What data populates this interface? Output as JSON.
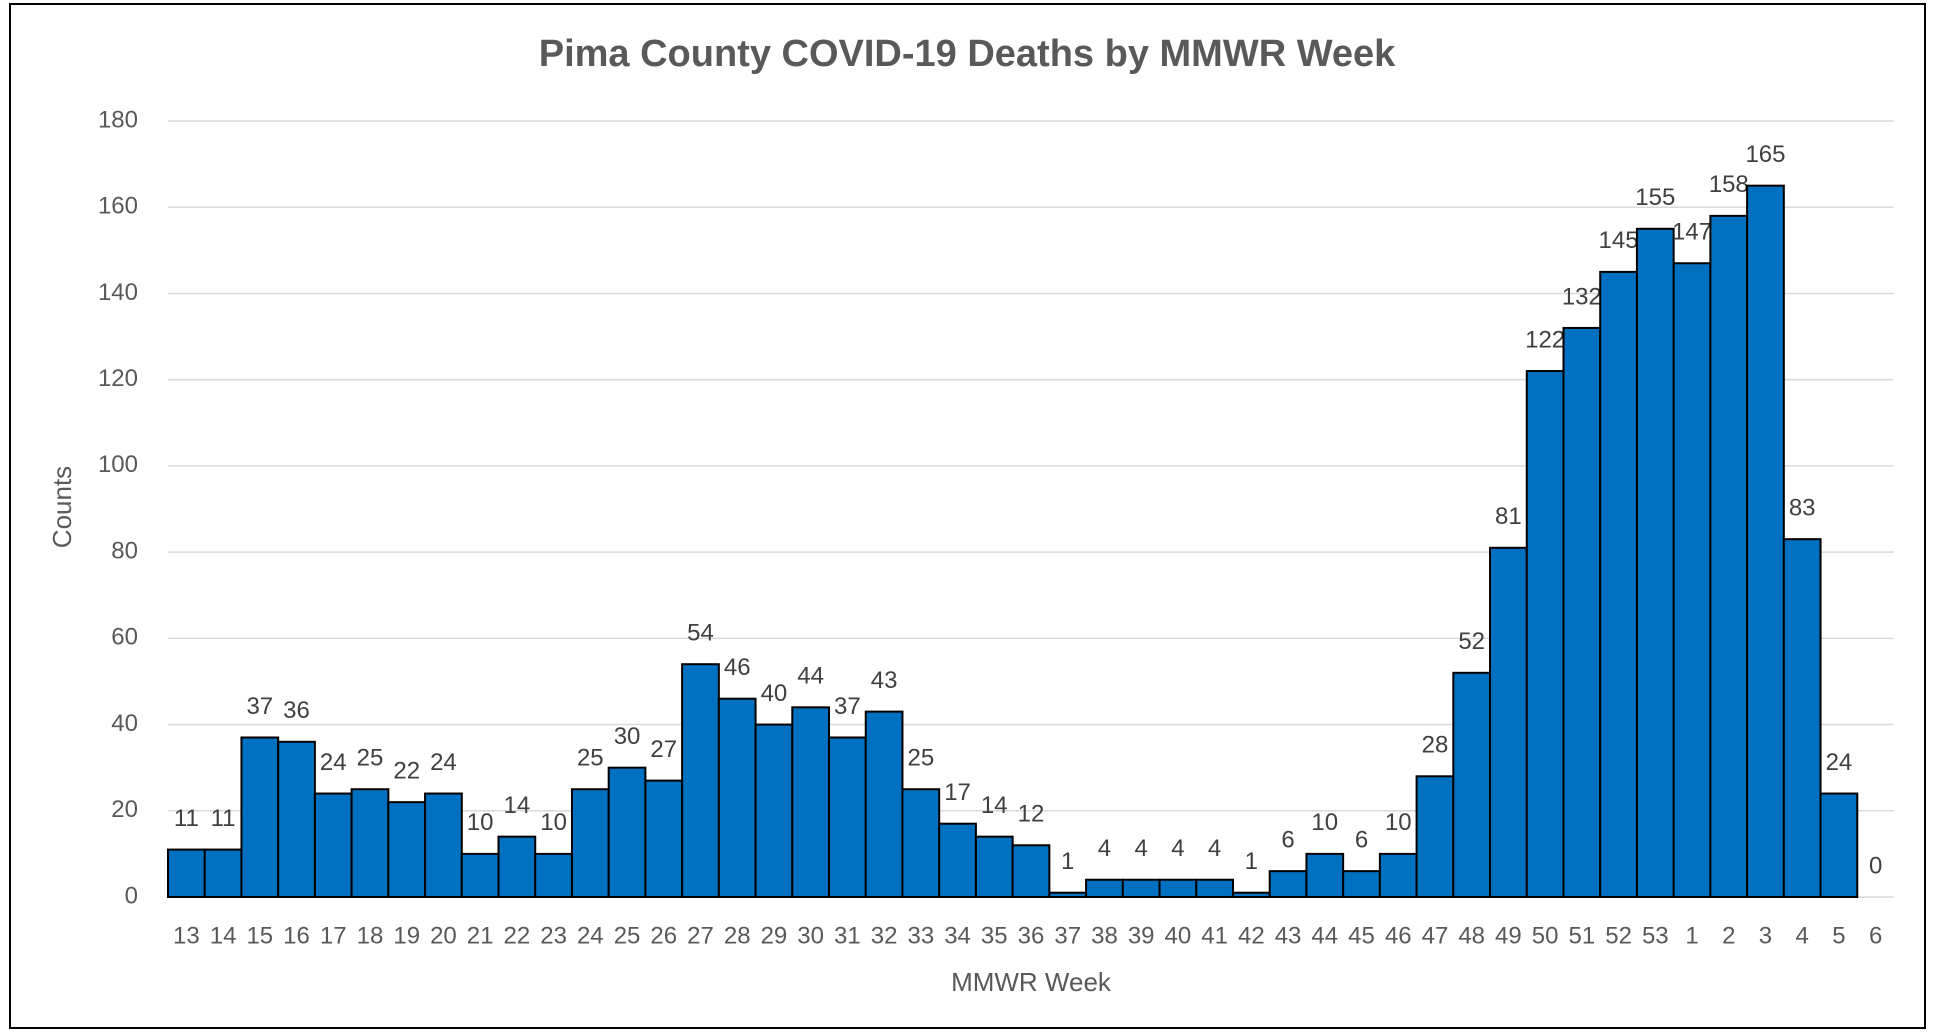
{
  "chart_data": {
    "type": "bar",
    "title": "Pima County COVID-19 Deaths by MMWR Week",
    "x_label": "MMWR Week",
    "y_label": "Counts",
    "categories": [
      "13",
      "14",
      "15",
      "16",
      "17",
      "18",
      "19",
      "20",
      "21",
      "22",
      "23",
      "24",
      "25",
      "26",
      "27",
      "28",
      "29",
      "30",
      "31",
      "32",
      "33",
      "34",
      "35",
      "36",
      "37",
      "38",
      "39",
      "40",
      "41",
      "42",
      "43",
      "44",
      "45",
      "46",
      "47",
      "48",
      "49",
      "50",
      "51",
      "52",
      "53",
      "1",
      "2",
      "3",
      "4",
      "5",
      "6"
    ],
    "values": [
      11,
      11,
      37,
      36,
      24,
      25,
      22,
      24,
      10,
      14,
      10,
      25,
      30,
      27,
      54,
      46,
      40,
      44,
      37,
      43,
      25,
      17,
      14,
      12,
      1,
      4,
      4,
      4,
      4,
      1,
      6,
      10,
      6,
      10,
      28,
      52,
      81,
      122,
      132,
      145,
      155,
      147,
      158,
      165,
      83,
      24,
      0
    ],
    "color": "#0070c0",
    "ylim": [
      0,
      180
    ],
    "yticks": [
      0,
      20,
      40,
      60,
      80,
      100,
      120,
      140,
      160,
      180
    ],
    "grid": true
  }
}
